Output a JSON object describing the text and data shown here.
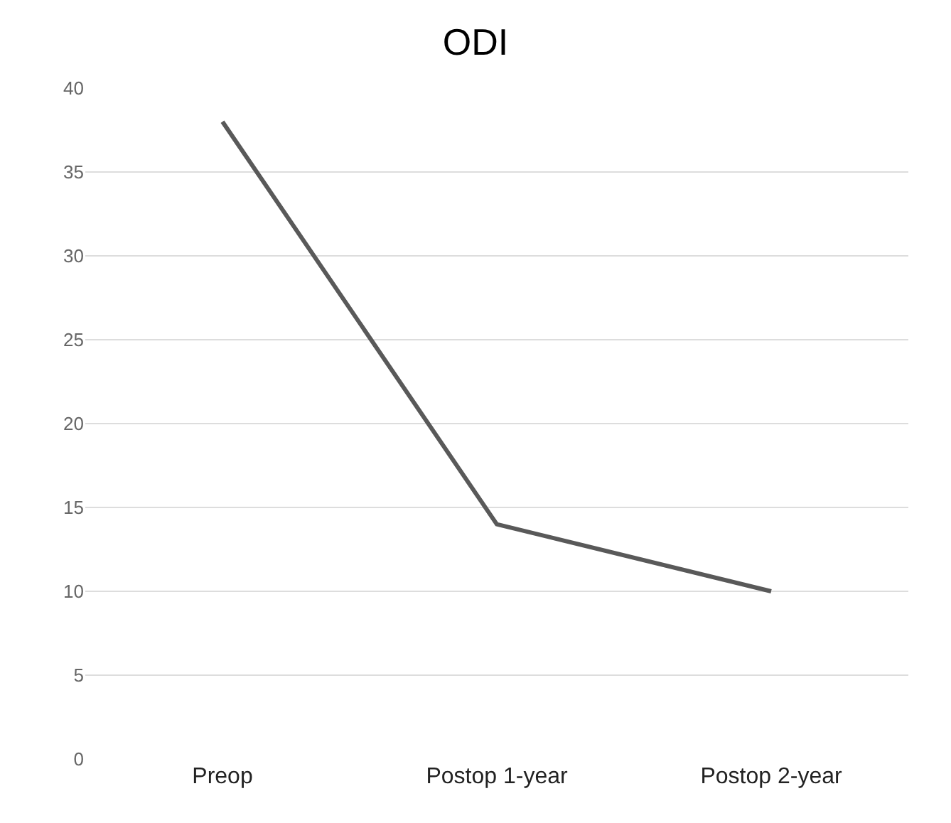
{
  "chart_data": {
    "type": "line",
    "title": "ODI",
    "categories": [
      "Preop",
      "Postop 1-year",
      "Postop 2-year"
    ],
    "series": [
      {
        "color": "#595959",
        "values": [
          38,
          14,
          10
        ]
      }
    ],
    "ylim": [
      0,
      40
    ],
    "yticks": [
      0,
      5,
      10,
      15,
      20,
      25,
      30,
      35,
      40
    ],
    "grid": "y",
    "marker": "none",
    "line_style": "solid",
    "legend": false
  }
}
